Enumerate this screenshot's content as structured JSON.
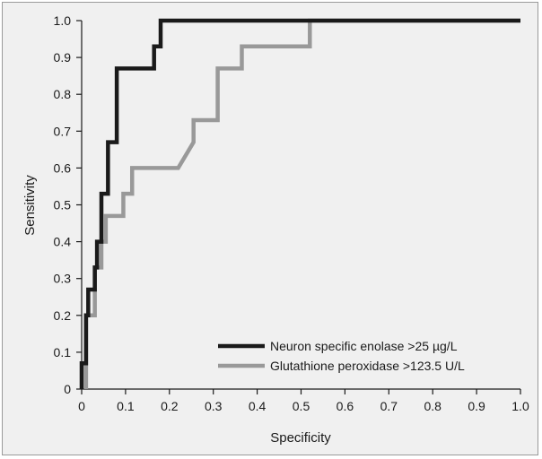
{
  "chart_data": {
    "type": "line",
    "title": "",
    "xlabel": "Specificity",
    "ylabel": "Sensitivity",
    "xlim": [
      0,
      1
    ],
    "ylim": [
      0,
      1
    ],
    "x_ticks": [
      "0",
      "0.1",
      "0.2",
      "0.3",
      "0.4",
      "0.5",
      "0.6",
      "0.7",
      "0.8",
      "0.9",
      "1.0"
    ],
    "y_ticks": [
      "0",
      "0.1",
      "0.2",
      "0.3",
      "0.4",
      "0.5",
      "0.6",
      "0.7",
      "0.8",
      "0.9",
      "1.0"
    ],
    "grid": false,
    "legend_position": "bottom-right",
    "series": [
      {
        "name": "Neuron specific enolase >25 µg/L",
        "color": "#1a1a1a",
        "points": [
          [
            0.0,
            0.0
          ],
          [
            0.0,
            0.07
          ],
          [
            0.01,
            0.07
          ],
          [
            0.01,
            0.2
          ],
          [
            0.015,
            0.2
          ],
          [
            0.015,
            0.27
          ],
          [
            0.03,
            0.27
          ],
          [
            0.03,
            0.33
          ],
          [
            0.035,
            0.33
          ],
          [
            0.035,
            0.4
          ],
          [
            0.045,
            0.4
          ],
          [
            0.045,
            0.53
          ],
          [
            0.06,
            0.53
          ],
          [
            0.06,
            0.67
          ],
          [
            0.08,
            0.67
          ],
          [
            0.08,
            0.87
          ],
          [
            0.165,
            0.87
          ],
          [
            0.165,
            0.93
          ],
          [
            0.18,
            0.93
          ],
          [
            0.18,
            1.0
          ],
          [
            1.0,
            1.0
          ]
        ]
      },
      {
        "name": "Glutathione peroxidase >123.5 U/L",
        "color": "#999999",
        "points": [
          [
            0.01,
            0.0
          ],
          [
            0.01,
            0.2
          ],
          [
            0.03,
            0.2
          ],
          [
            0.03,
            0.33
          ],
          [
            0.045,
            0.33
          ],
          [
            0.045,
            0.4
          ],
          [
            0.055,
            0.4
          ],
          [
            0.055,
            0.47
          ],
          [
            0.095,
            0.47
          ],
          [
            0.095,
            0.53
          ],
          [
            0.115,
            0.53
          ],
          [
            0.115,
            0.6
          ],
          [
            0.22,
            0.6
          ],
          [
            0.255,
            0.67
          ],
          [
            0.255,
            0.73
          ],
          [
            0.31,
            0.73
          ],
          [
            0.31,
            0.87
          ],
          [
            0.365,
            0.87
          ],
          [
            0.365,
            0.93
          ],
          [
            0.52,
            0.93
          ],
          [
            0.52,
            1.0
          ],
          [
            1.0,
            1.0
          ]
        ]
      }
    ]
  }
}
